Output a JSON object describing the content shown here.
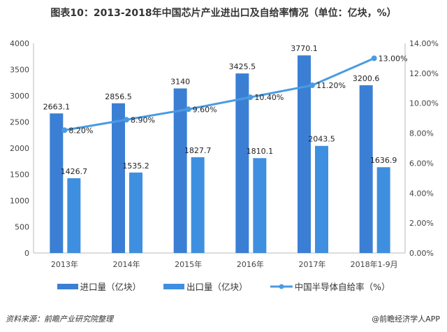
{
  "chart_data": {
    "type": "bar+line",
    "title": "图表10：2013-2018年中国芯片产业进出口及自给率情况（单位：亿块，%）",
    "categories": [
      "2013年",
      "2014年",
      "2015年",
      "2016年",
      "2017年",
      "2018年1-9月"
    ],
    "series": [
      {
        "name": "进口量（亿块）",
        "type": "bar",
        "axis": "left",
        "color": "#3b7fd4",
        "values": [
          2663.1,
          2856.5,
          3140,
          3425.5,
          3770.1,
          3200.6
        ],
        "labels": [
          "2663.1",
          "2856.5",
          "3140",
          "3425.5",
          "3770.1",
          "3200.6"
        ]
      },
      {
        "name": "出口量（亿块）",
        "type": "bar",
        "axis": "left",
        "color": "#3f8fe0",
        "values": [
          1426.7,
          1535.2,
          1827.7,
          1810.1,
          2043.5,
          1636.9
        ],
        "labels": [
          "1426.7",
          "1535.2",
          "1827.7",
          "1810.1",
          "2043.5",
          "1636.9"
        ]
      },
      {
        "name": "中国半导体自给率（%）",
        "type": "line",
        "axis": "right",
        "color": "#4a9be2",
        "values": [
          8.2,
          8.9,
          9.6,
          10.4,
          11.2,
          13.0
        ],
        "labels": [
          "8.20%",
          "8.90%",
          "9.60%",
          "10.40%",
          "11.20%",
          "13.00%"
        ]
      }
    ],
    "ylim": [
      0,
      4000
    ],
    "yticks": [
      "0",
      "500",
      "1000",
      "1500",
      "2000",
      "2500",
      "3000",
      "3500",
      "4000"
    ],
    "y2lim": [
      0,
      14
    ],
    "y2ticks": [
      "0.00%",
      "2.00%",
      "4.00%",
      "6.00%",
      "8.00%",
      "10.00%",
      "12.00%",
      "14.00%"
    ],
    "grid": false,
    "legend": "bottom"
  },
  "footer": {
    "source": "资料来源：前瞻产业研究院整理",
    "credit": "@前瞻经济学人APP"
  }
}
